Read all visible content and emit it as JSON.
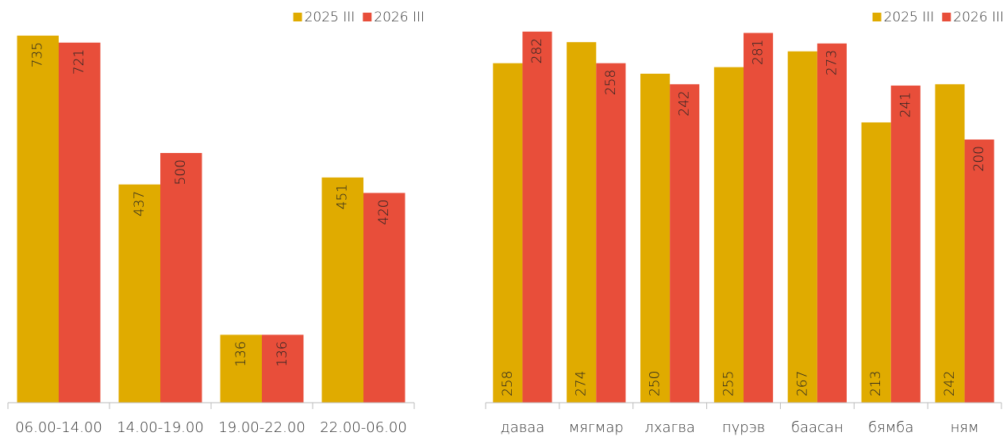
{
  "chart_data": [
    {
      "type": "bar",
      "categories": [
        "06.00-14.00",
        "14.00-19.00",
        "19.00-22.00",
        "22.00-06.00"
      ],
      "series": [
        {
          "name": "2025 III",
          "color": "#e0ab00",
          "values": [
            735,
            437,
            136,
            451
          ],
          "label_position": "inside_end"
        },
        {
          "name": "2026 III",
          "color": "#e84e3a",
          "values": [
            721,
            500,
            136,
            420
          ],
          "label_position": "inside_end"
        }
      ],
      "ylim": [
        0,
        800
      ],
      "legend": "top-right"
    },
    {
      "type": "bar",
      "categories": [
        "даваа",
        "мягмар",
        "лхагва",
        "пүрэв",
        "баасан",
        "бямба",
        "ням"
      ],
      "series": [
        {
          "name": "2025 III",
          "color": "#e0ab00",
          "values": [
            258,
            274,
            250,
            255,
            267,
            213,
            242
          ],
          "label_position": "inside_base"
        },
        {
          "name": "2026 III",
          "color": "#e84e3a",
          "values": [
            282,
            258,
            242,
            281,
            273,
            241,
            200
          ],
          "label_position": "inside_end"
        }
      ],
      "ylim": [
        0,
        300
      ],
      "legend": "top-right"
    }
  ]
}
